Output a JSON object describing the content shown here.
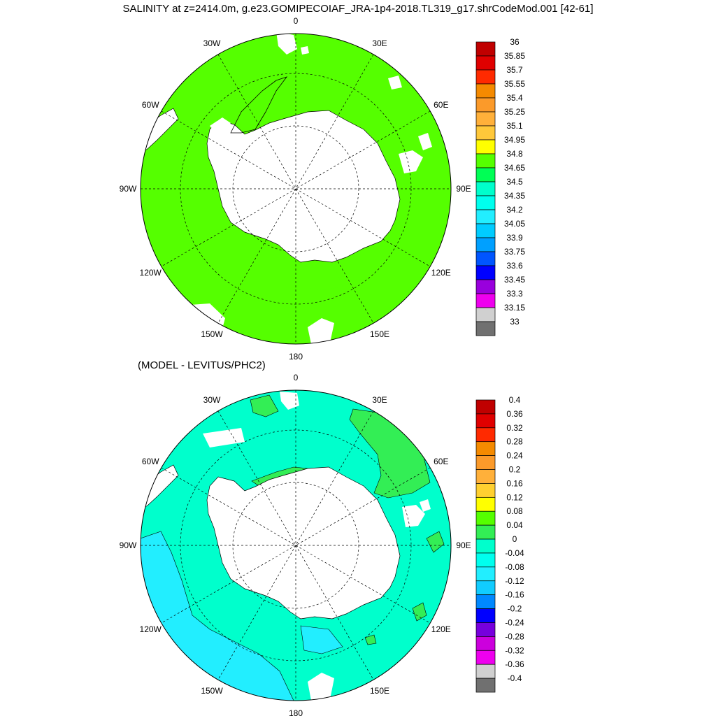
{
  "title": "SALINITY at z=2414.0m, g.e23.GOMIPECOIAF_JRA-1p4-2018.TL319_g17.shrCodeMod.001 [42-61]",
  "subtitle": "(MODEL - LEVITUS/PHC2)",
  "longitude_labels": [
    "0",
    "30E",
    "60E",
    "90E",
    "120E",
    "150E",
    "180",
    "150W",
    "120W",
    "90W",
    "60W",
    "30W"
  ],
  "panels": [
    {
      "name": "salinity",
      "colorbar": {
        "labels": [
          "36",
          "35.85",
          "35.7",
          "35.55",
          "35.4",
          "35.25",
          "35.1",
          "34.95",
          "34.8",
          "34.65",
          "34.5",
          "34.35",
          "34.2",
          "34.05",
          "33.9",
          "33.75",
          "33.6",
          "33.45",
          "33.3",
          "33.15",
          "33"
        ],
        "colors": [
          "#c00000",
          "#e00000",
          "#ff2a00",
          "#f58a00",
          "#fb9a2a",
          "#ffb03a",
          "#ffc83a",
          "#ffff00",
          "#55ff00",
          "#00ff55",
          "#00ffcc",
          "#00ffee",
          "#22eeff",
          "#00ccff",
          "#00a0ff",
          "#0055ff",
          "#0000ff",
          "#9900dd",
          "#ee00ee",
          "#d0d0d0",
          "#707070"
        ]
      },
      "ocean_color": "#55ff00"
    },
    {
      "name": "difference",
      "colorbar": {
        "labels": [
          "0.4",
          "0.36",
          "0.32",
          "0.28",
          "0.24",
          "0.2",
          "0.16",
          "0.12",
          "0.08",
          "0.04",
          "0",
          "-0.04",
          "-0.08",
          "-0.12",
          "-0.16",
          "-0.2",
          "-0.24",
          "-0.28",
          "-0.32",
          "-0.36",
          "-0.4"
        ],
        "colors": [
          "#c00000",
          "#e00000",
          "#ff2a00",
          "#f58a00",
          "#fb9a2a",
          "#ffb03a",
          "#ffd030",
          "#ffff00",
          "#55ff00",
          "#33ee55",
          "#00ffcc",
          "#00ffee",
          "#22eeff",
          "#11ccff",
          "#0088ff",
          "#0000ff",
          "#7700dd",
          "#cc00dd",
          "#ee00ee",
          "#d0d0d0",
          "#707070"
        ]
      },
      "ocean_color": "#00ffcc"
    }
  ]
}
